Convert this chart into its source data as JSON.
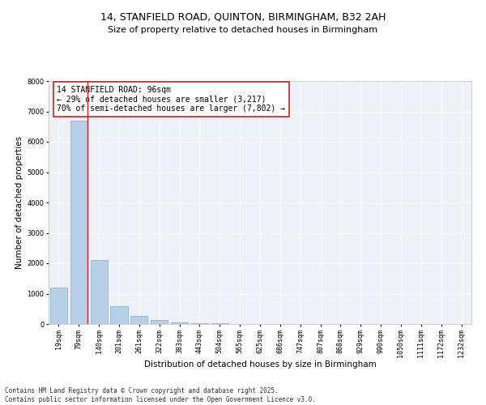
{
  "title_line1": "14, STANFIELD ROAD, QUINTON, BIRMINGHAM, B32 2AH",
  "title_line2": "Size of property relative to detached houses in Birmingham",
  "xlabel": "Distribution of detached houses by size in Birmingham",
  "ylabel": "Number of detached properties",
  "categories": [
    "19sqm",
    "79sqm",
    "140sqm",
    "201sqm",
    "261sqm",
    "322sqm",
    "383sqm",
    "443sqm",
    "504sqm",
    "565sqm",
    "625sqm",
    "686sqm",
    "747sqm",
    "807sqm",
    "868sqm",
    "929sqm",
    "990sqm",
    "1050sqm",
    "1111sqm",
    "1172sqm",
    "1232sqm"
  ],
  "values": [
    1200,
    6700,
    2100,
    600,
    280,
    130,
    55,
    30,
    18,
    10,
    5,
    2,
    0,
    0,
    0,
    0,
    0,
    0,
    0,
    0,
    0
  ],
  "bar_color": "#b8cfe8",
  "bar_edge_color": "#7aafd4",
  "vline_color": "#cc2222",
  "vline_x_idx": 1,
  "annotation_text": "14 STANFIELD ROAD: 96sqm\n← 29% of detached houses are smaller (3,217)\n70% of semi-detached houses are larger (7,802) →",
  "annotation_box_color": "#ffffff",
  "annotation_box_edge": "#cc2222",
  "ylim": [
    0,
    8000
  ],
  "yticks": [
    0,
    1000,
    2000,
    3000,
    4000,
    5000,
    6000,
    7000,
    8000
  ],
  "bg_color": "#ffffff",
  "plot_bg_color": "#eef2f8",
  "grid_color": "#ffffff",
  "footer_line1": "Contains HM Land Registry data © Crown copyright and database right 2025.",
  "footer_line2": "Contains public sector information licensed under the Open Government Licence v3.0.",
  "title_fontsize": 9,
  "subtitle_fontsize": 8,
  "axis_label_fontsize": 7.5,
  "tick_fontsize": 6,
  "annotation_fontsize": 7,
  "footer_fontsize": 5.5
}
